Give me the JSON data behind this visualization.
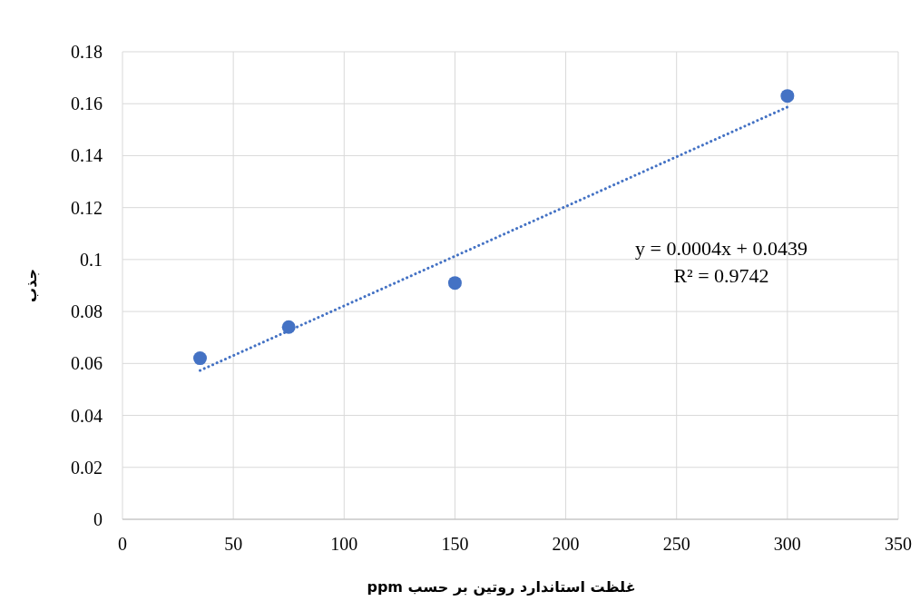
{
  "chart_data": {
    "type": "scatter",
    "xlabel": "غلظت استاندارد روتین بر حسب ppm",
    "ylabel": "جذب",
    "xlim": [
      0,
      350
    ],
    "xticks": [
      0,
      50,
      100,
      150,
      200,
      250,
      300,
      350
    ],
    "ylim": [
      0,
      0.18
    ],
    "yticks": [
      0,
      0.02,
      0.04,
      0.06,
      0.08,
      0.1,
      0.12,
      0.14,
      0.16,
      0.18
    ],
    "grid": true,
    "marker": "circle",
    "series": [
      {
        "x": [
          35,
          75,
          150,
          300
        ],
        "values": [
          0.062,
          0.074,
          0.091,
          0.163
        ],
        "color": "#4472c4"
      },
      {
        "type": "line",
        "x": [
          35,
          300
        ],
        "values": [
          0.0573,
          0.1587
        ],
        "color": "#4472c4",
        "line_style": "dotted",
        "marker": "none"
      }
    ],
    "annotations": [
      "y = 0.0004x + 0.0439",
      "R² = 0.9742"
    ]
  }
}
